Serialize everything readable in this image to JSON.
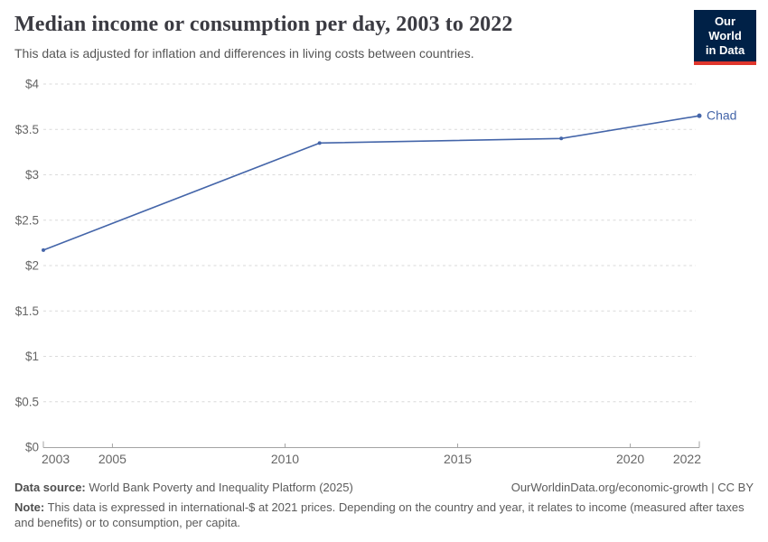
{
  "header": {
    "title": "Median income or consumption per day, 2003 to 2022",
    "subtitle": "This data is adjusted for inflation and differences in living costs between countries."
  },
  "logo": {
    "line1": "Our World",
    "line2": "in Data",
    "bg_color": "#002147",
    "stripe_color": "#e0362c"
  },
  "chart_data": {
    "type": "line",
    "title": "Median income or consumption per day, 2003 to 2022",
    "xlabel": "",
    "ylabel": "",
    "xlim": [
      2003,
      2022
    ],
    "ylim": [
      0,
      4
    ],
    "grid": "horizontal-dashed",
    "legend_position": "end-of-line-label",
    "x_ticks": [
      2003,
      2005,
      2010,
      2015,
      2020,
      2022
    ],
    "y_ticks": [
      0,
      0.5,
      1,
      1.5,
      2,
      2.5,
      3,
      3.5,
      4
    ],
    "y_tick_labels": [
      "$0",
      "$0.5",
      "$1",
      "$1.5",
      "$2",
      "$2.5",
      "$3",
      "$3.5",
      "$4"
    ],
    "series": [
      {
        "name": "Chad",
        "color": "#4465a9",
        "x": [
          2003,
          2011,
          2018,
          2022
        ],
        "values": [
          2.17,
          3.35,
          3.4,
          3.65
        ]
      }
    ],
    "colors": {
      "grid": "#dadada",
      "axis": "#a3a3a3",
      "tick_text": "#666666"
    }
  },
  "footer": {
    "source_label": "Data source:",
    "source_text": " World Bank Poverty and Inequality Platform (2025)",
    "rights": "OurWorldinData.org/economic-growth | CC BY",
    "note_label": "Note:",
    "note_text": " This data is expressed in international-$ at 2021 prices. Depending on the country and year, it relates to income (measured after taxes and benefits) or to consumption, per capita."
  }
}
